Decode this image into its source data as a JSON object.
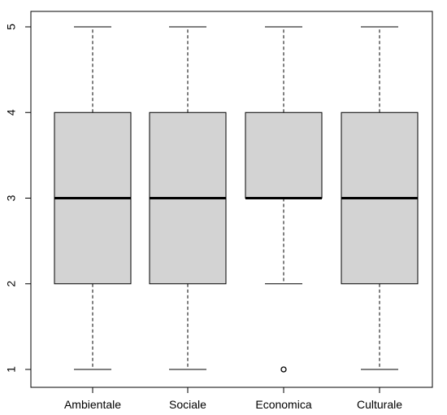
{
  "chart_data": {
    "type": "boxplot",
    "title": "",
    "xlabel": "",
    "ylabel": "",
    "categories": [
      "Ambientale",
      "Sociale",
      "Economica",
      "Culturale"
    ],
    "boxes": [
      {
        "category": "Ambientale",
        "whisker_low": 1,
        "q1": 2,
        "median": 3,
        "q3": 4,
        "whisker_high": 5,
        "outliers": []
      },
      {
        "category": "Sociale",
        "whisker_low": 1,
        "q1": 2,
        "median": 3,
        "q3": 4,
        "whisker_high": 5,
        "outliers": []
      },
      {
        "category": "Economica",
        "whisker_low": 2,
        "q1": 3,
        "median": 3,
        "q3": 4,
        "whisker_high": 5,
        "outliers": [
          1
        ]
      },
      {
        "category": "Culturale",
        "whisker_low": 1,
        "q1": 2,
        "median": 3,
        "q3": 4,
        "whisker_high": 5,
        "outliers": []
      }
    ],
    "ylim": [
      1,
      5
    ],
    "yticks": [
      1,
      2,
      3,
      4,
      5
    ],
    "grid": false,
    "box_fill": "#d3d3d3",
    "line_color": "#000000"
  }
}
